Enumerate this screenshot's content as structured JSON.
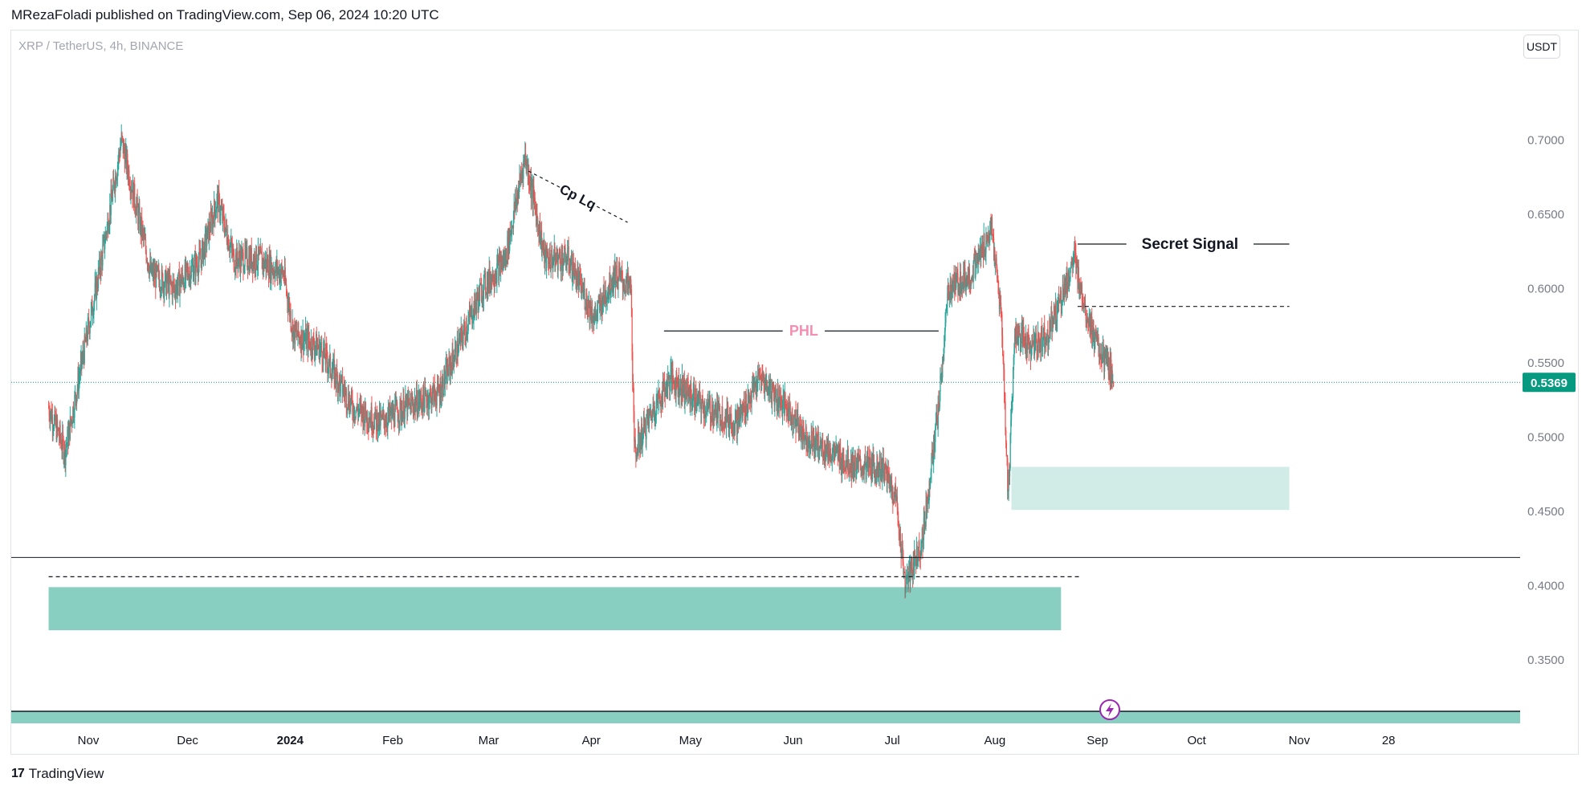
{
  "header": {
    "publish_line": "MRezaFoladi published on TradingView.com, Sep 06, 2024 10:20 UTC"
  },
  "chart_header": {
    "symbol_line": "XRP / TetherUS, 4h, BINANCE",
    "currency_button": "USDT"
  },
  "footer": {
    "logo_glyph": "17",
    "brand": "TradingView"
  },
  "colors": {
    "up": "#26a69a",
    "down": "#ef5350",
    "zone_light": "#d1ece6",
    "zone_dark": "#89cfc1",
    "last_price_bg": "#089981",
    "phl_label": "#f48fb1"
  },
  "chart_data": {
    "type": "candlestick",
    "symbol": "XRP / TetherUS",
    "interval": "4h",
    "exchange": "BINANCE",
    "y_ticks": [
      "0.3500",
      "0.4000",
      "0.4500",
      "0.5000",
      "0.5500",
      "0.6000",
      "0.6500",
      "0.7000"
    ],
    "x_ticks": [
      "Nov",
      "Dec",
      "2024",
      "Feb",
      "Mar",
      "Apr",
      "May",
      "Jun",
      "Jul",
      "Aug",
      "Sep",
      "Oct",
      "Nov",
      "28"
    ],
    "last_price": "0.5369",
    "price_path": [
      [
        "2023-10-20",
        0.52
      ],
      [
        "2023-10-25",
        0.49
      ],
      [
        "2023-10-30",
        0.55
      ],
      [
        "2023-11-05",
        0.62
      ],
      [
        "2023-11-11",
        0.7
      ],
      [
        "2023-11-15",
        0.66
      ],
      [
        "2023-11-20",
        0.61
      ],
      [
        "2023-11-27",
        0.6
      ],
      [
        "2023-12-05",
        0.62
      ],
      [
        "2023-12-10",
        0.66
      ],
      [
        "2023-12-15",
        0.62
      ],
      [
        "2023-12-22",
        0.62
      ],
      [
        "2023-12-30",
        0.61
      ],
      [
        "2024-01-02",
        0.57
      ],
      [
        "2024-01-10",
        0.56
      ],
      [
        "2024-01-20",
        0.52
      ],
      [
        "2024-01-28",
        0.51
      ],
      [
        "2024-02-05",
        0.52
      ],
      [
        "2024-02-15",
        0.53
      ],
      [
        "2024-02-28",
        0.6
      ],
      [
        "2024-03-06",
        0.62
      ],
      [
        "2024-03-12",
        0.69
      ],
      [
        "2024-03-18",
        0.62
      ],
      [
        "2024-03-25",
        0.62
      ],
      [
        "2024-04-02",
        0.58
      ],
      [
        "2024-04-08",
        0.61
      ],
      [
        "2024-04-13",
        0.6
      ],
      [
        "2024-04-14",
        0.49
      ],
      [
        "2024-04-20",
        0.52
      ],
      [
        "2024-04-25",
        0.54
      ],
      [
        "2024-05-05",
        0.52
      ],
      [
        "2024-05-15",
        0.51
      ],
      [
        "2024-05-22",
        0.54
      ],
      [
        "2024-05-30",
        0.52
      ],
      [
        "2024-06-05",
        0.5
      ],
      [
        "2024-06-12",
        0.49
      ],
      [
        "2024-06-20",
        0.48
      ],
      [
        "2024-06-28",
        0.48
      ],
      [
        "2024-07-02",
        0.46
      ],
      [
        "2024-07-05",
        0.4
      ],
      [
        "2024-07-10",
        0.43
      ],
      [
        "2024-07-15",
        0.52
      ],
      [
        "2024-07-18",
        0.6
      ],
      [
        "2024-07-25",
        0.61
      ],
      [
        "2024-07-31",
        0.64
      ],
      [
        "2024-08-03",
        0.58
      ],
      [
        "2024-08-05",
        0.46
      ],
      [
        "2024-08-07",
        0.57
      ],
      [
        "2024-08-12",
        0.56
      ],
      [
        "2024-08-17",
        0.57
      ],
      [
        "2024-08-22",
        0.6
      ],
      [
        "2024-08-25",
        0.62
      ],
      [
        "2024-08-28",
        0.59
      ],
      [
        "2024-09-01",
        0.56
      ],
      [
        "2024-09-06",
        0.54
      ]
    ],
    "annotations": [
      {
        "kind": "text_line",
        "label": "Secret Signal",
        "price": 0.63,
        "from": "2024-08-26",
        "to": "2024-10-29"
      },
      {
        "kind": "dashed_line",
        "price": 0.588,
        "from": "2024-08-26",
        "to": "2024-10-29"
      },
      {
        "kind": "text_line",
        "label": "PHL",
        "price": 0.5715,
        "from": "2024-04-23",
        "to": "2024-07-15"
      },
      {
        "kind": "diagonal_text",
        "label": "Cp Lq",
        "from": "2024-03-13",
        "to": "2024-04-12"
      },
      {
        "kind": "zone",
        "low": 0.451,
        "high": 0.48,
        "from": "2024-08-06",
        "to": "2024-10-29",
        "shade": "light"
      },
      {
        "kind": "hline",
        "price": 0.419
      },
      {
        "kind": "dashed_line",
        "price": 0.406,
        "from": "2023-10-20",
        "to": "2024-08-27"
      },
      {
        "kind": "zone",
        "low": 0.37,
        "high": 0.399,
        "from": "2023-10-20",
        "to": "2024-08-21",
        "shade": "dark"
      }
    ]
  }
}
